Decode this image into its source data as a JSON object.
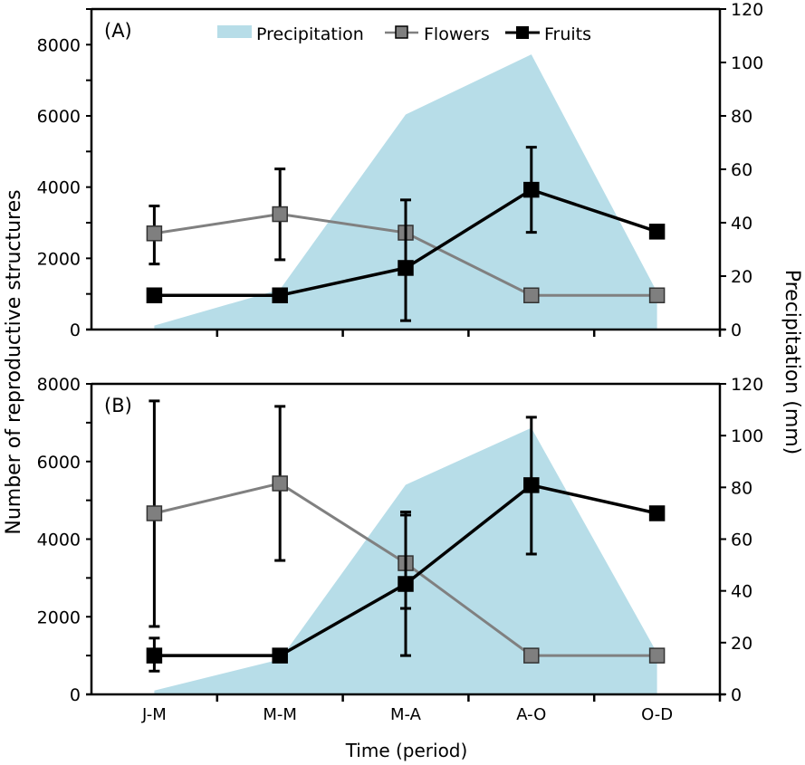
{
  "chart_data": [
    {
      "type": "line",
      "panel_label": "(A)",
      "categories": [
        "J-M",
        "M-M",
        "M-A",
        "A-O",
        "O-D"
      ],
      "ylabel": "Number of reproductive structures",
      "y2label": "Precipitation (mm)",
      "ylim": [
        0,
        9000
      ],
      "yticks": [
        0,
        2000,
        4000,
        6000,
        8000
      ],
      "y2lim": [
        0,
        120
      ],
      "y2ticks": [
        0,
        20,
        40,
        60,
        80,
        100,
        120
      ],
      "legend": [
        "Precipitation",
        "Flowers",
        "Fruits"
      ],
      "legend_position": "top",
      "precipitation": [
        1.5,
        15,
        80.5,
        103,
        14
      ],
      "series": [
        {
          "name": "Flowers",
          "values": [
            2700,
            3240,
            2720,
            960,
            960
          ],
          "err_low": [
            1840,
            1960,
            null,
            null,
            null
          ],
          "err_high": [
            3470,
            4510,
            null,
            null,
            null
          ]
        },
        {
          "name": "Fruits",
          "values": [
            960,
            960,
            1730,
            3925,
            2750
          ],
          "err_low": [
            null,
            null,
            250,
            2730,
            null
          ],
          "err_high": [
            null,
            null,
            3640,
            5120,
            null
          ]
        }
      ]
    },
    {
      "type": "line",
      "panel_label": "(B)",
      "categories": [
        "J-M",
        "M-M",
        "M-A",
        "A-O",
        "O-D"
      ],
      "xlabel": "Time (period)",
      "ylim": [
        0,
        8000
      ],
      "yticks": [
        0,
        2000,
        4000,
        6000,
        8000
      ],
      "y2lim": [
        0,
        120
      ],
      "y2ticks": [
        0,
        20,
        40,
        60,
        80,
        100,
        120
      ],
      "precipitation": [
        1.5,
        13.5,
        81,
        103,
        16
      ],
      "series": [
        {
          "name": "Flowers",
          "values": [
            4665,
            5435,
            3380,
            1000,
            1000
          ],
          "err_low": [
            1750,
            3450,
            1000,
            null,
            null
          ],
          "err_high": [
            7560,
            7420,
            4700,
            null,
            null
          ]
        },
        {
          "name": "Fruits",
          "values": [
            1000,
            1000,
            2845,
            5390,
            4665
          ],
          "err_low": [
            600,
            null,
            2215,
            3615,
            null
          ],
          "err_high": [
            1450,
            null,
            4620,
            7140,
            null
          ]
        }
      ]
    }
  ],
  "colors": {
    "precipitation": "#b7dde8",
    "flowers_fill": "#7f7f7f",
    "flowers_line": "#808080",
    "fruits": "#000000"
  }
}
